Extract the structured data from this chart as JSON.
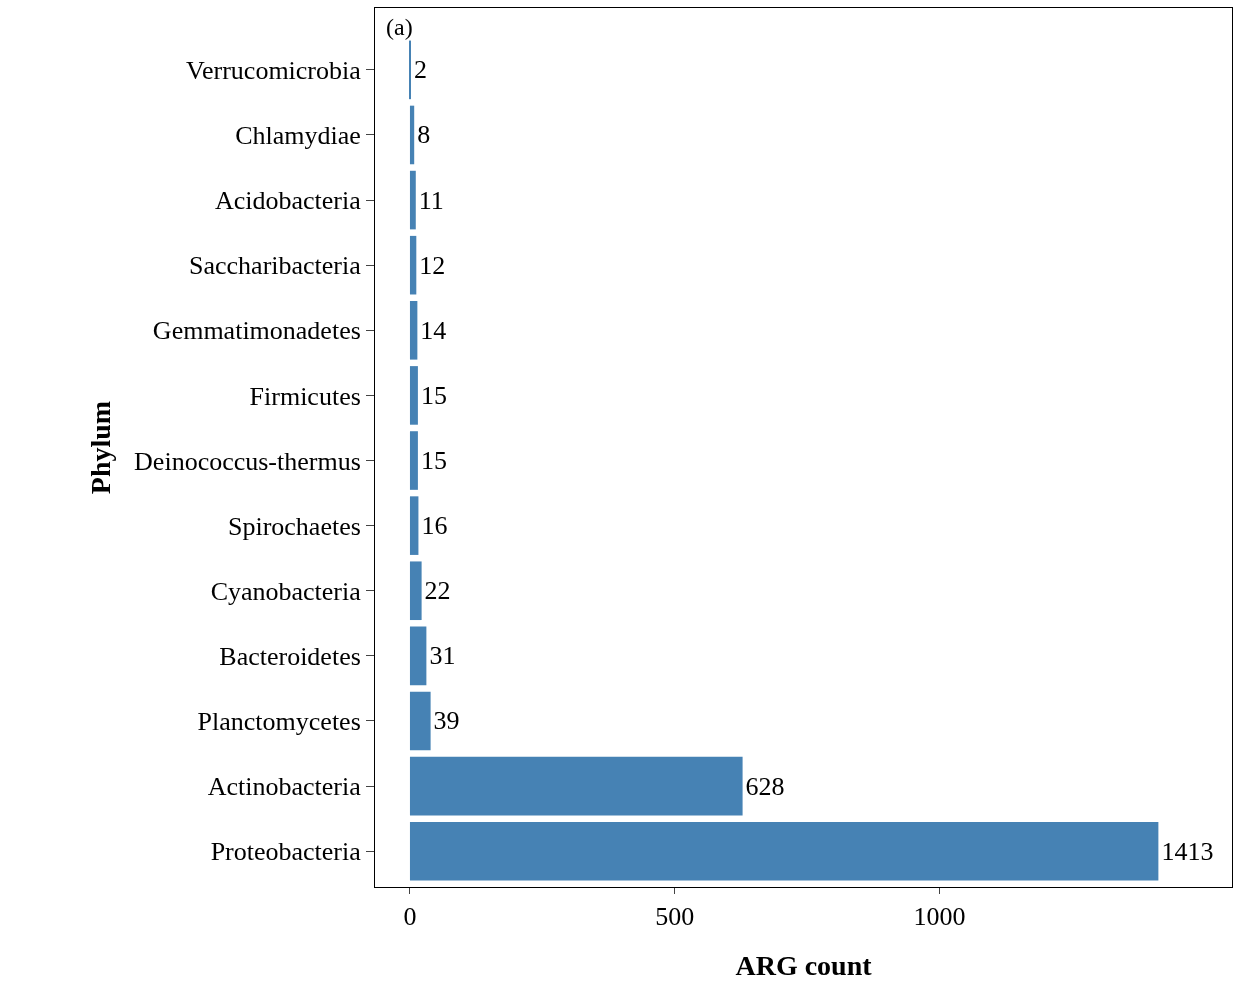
{
  "chart_data": {
    "type": "bar",
    "orientation": "horizontal",
    "categories": [
      "Verrucomicrobia",
      "Chlamydiae",
      "Acidobacteria",
      "Saccharibacteria",
      "Gemmatimonadetes",
      "Firmicutes",
      "Deinococcus-thermus",
      "Spirochaetes",
      "Cyanobacteria",
      "Bacteroidetes",
      "Planctomycetes",
      "Actinobacteria",
      "Proteobacteria"
    ],
    "values": [
      2,
      8,
      11,
      12,
      14,
      15,
      15,
      16,
      22,
      31,
      39,
      628,
      1413
    ],
    "color": "#4682b4",
    "xlim": [
      -66,
      1552
    ],
    "xticks": [
      0,
      500,
      1000
    ],
    "xlabel": "ARG count",
    "ylabel": "Phylum",
    "annotations": [
      "(a)"
    ],
    "data_labels": true
  }
}
